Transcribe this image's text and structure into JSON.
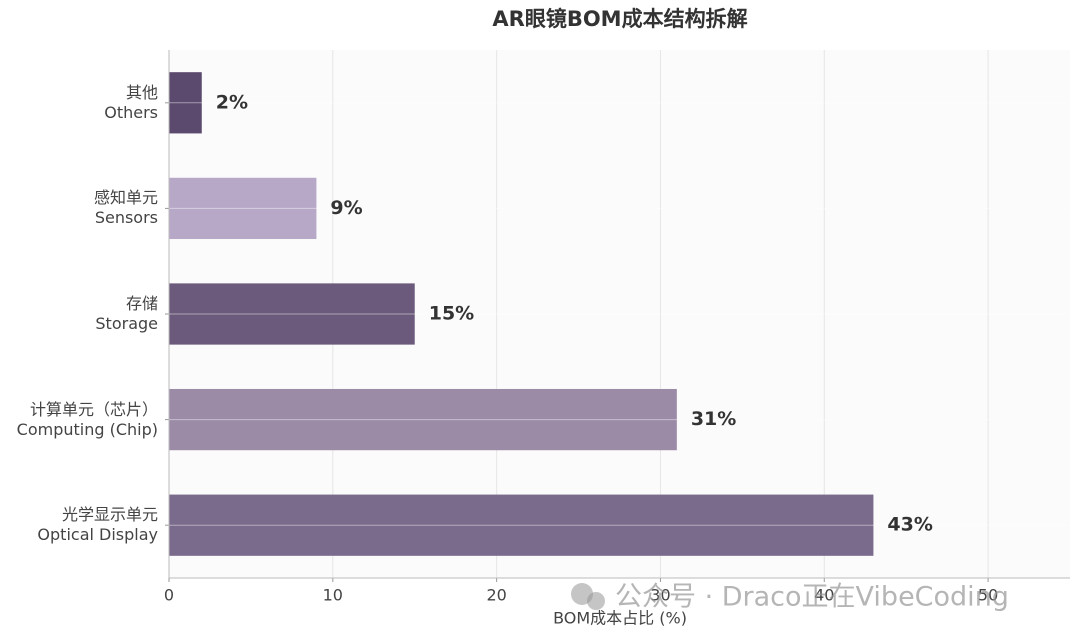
{
  "chart_data": {
    "type": "barh",
    "title": "AR眼镜BOM成本结构拆解",
    "categories": [
      "其他\nOthers",
      "感知单元\nSensors",
      "存储\nStorage",
      "计算单元（芯片）\nComputing (Chip)",
      "光学显示单元\nOptical Display"
    ],
    "values": [
      2,
      9,
      15,
      31,
      43
    ],
    "value_labels": [
      "2%",
      "9%",
      "15%",
      "31%",
      "43%"
    ],
    "colors": [
      "#5c4a6e",
      "#b8a8c8",
      "#6b5a7b",
      "#9b8ba7",
      "#7a6a8c"
    ],
    "xlabel": "BOM成本占比 (%)",
    "xlim": [
      0,
      55
    ],
    "xticks": [
      0,
      10,
      20,
      30,
      40,
      50
    ],
    "grid": true,
    "watermark": "公众号 · Draco正在VibeCoding"
  }
}
